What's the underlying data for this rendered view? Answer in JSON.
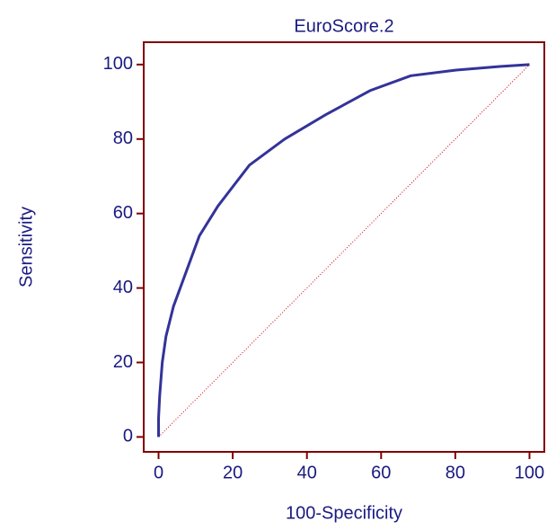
{
  "chart_data": {
    "type": "line",
    "title": "EuroScore.2",
    "x_label": "100-Specificity",
    "y_label": "Sensitivity",
    "series": [
      {
        "color": "#333399",
        "x": [
          0,
          0,
          0.3,
          1,
          2,
          4,
          11,
          16,
          24.5,
          34,
          45,
          57,
          68,
          80,
          92,
          100
        ],
        "values": [
          0,
          5,
          11,
          20,
          27,
          35,
          54,
          62,
          73,
          80,
          86.5,
          93,
          97,
          98.5,
          99.5,
          100
        ]
      }
    ],
    "reference_line": {
      "color": "#cc0000",
      "x": [
        0,
        100
      ],
      "values": [
        0,
        100
      ]
    },
    "axis_color": "#800000",
    "xlim": [
      -4,
      104
    ],
    "ylim": [
      -4,
      106
    ],
    "xticks": [
      0,
      20,
      40,
      60,
      80,
      100
    ],
    "yticks": [
      0,
      20,
      40,
      60,
      80,
      100
    ]
  }
}
